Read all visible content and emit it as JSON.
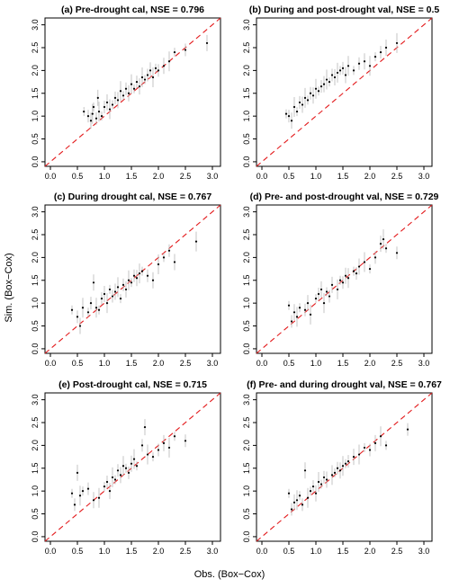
{
  "figure": {
    "xlabel": "Obs. (Box−Cox)",
    "ylabel": "Sim. (Box−Cox)"
  },
  "chart_data": [
    {
      "type": "scatter",
      "title": "(a) Pre-drought cal, NSE = 0.796",
      "xlim": [
        -0.1,
        3.15
      ],
      "ylim": [
        -0.1,
        3.15
      ],
      "xticks": [
        "0.0",
        "0.5",
        "1.0",
        "1.5",
        "2.0",
        "2.5",
        "3.0"
      ],
      "yticks": [
        "0.0",
        "0.5",
        "1.0",
        "1.5",
        "2.0",
        "2.5",
        "3.0"
      ],
      "reference_line": "1:1",
      "x": [
        0.62,
        0.7,
        0.75,
        0.78,
        0.8,
        0.85,
        0.88,
        0.9,
        0.95,
        1.0,
        1.05,
        1.1,
        1.15,
        1.2,
        1.25,
        1.3,
        1.35,
        1.4,
        1.45,
        1.5,
        1.55,
        1.6,
        1.65,
        1.7,
        1.75,
        1.8,
        1.85,
        1.9,
        1.95,
        2.0,
        2.1,
        2.2,
        2.3,
        2.5,
        2.9
      ],
      "y": [
        1.1,
        1.0,
        0.9,
        1.05,
        1.2,
        0.95,
        1.4,
        1.1,
        1.0,
        1.2,
        1.3,
        1.15,
        1.25,
        1.4,
        1.35,
        1.55,
        1.45,
        1.6,
        1.5,
        1.7,
        1.6,
        1.75,
        1.65,
        1.85,
        1.8,
        1.9,
        2.0,
        1.85,
        2.05,
        2.0,
        2.1,
        2.2,
        2.4,
        2.45,
        2.6
      ]
    },
    {
      "type": "scatter",
      "title": "(b) During and post-drought val, NSE = 0.5",
      "xlim": [
        -0.1,
        3.15
      ],
      "ylim": [
        -0.1,
        3.15
      ],
      "xticks": [
        "0.0",
        "0.5",
        "1.0",
        "1.5",
        "2.0",
        "2.5",
        "3.0"
      ],
      "yticks": [
        "0.0",
        "0.5",
        "1.0",
        "1.5",
        "2.0",
        "2.5",
        "3.0"
      ],
      "reference_line": "1:1",
      "x": [
        0.45,
        0.5,
        0.55,
        0.6,
        0.65,
        0.7,
        0.75,
        0.8,
        0.85,
        0.9,
        0.95,
        1.0,
        1.05,
        1.1,
        1.15,
        1.2,
        1.25,
        1.3,
        1.35,
        1.4,
        1.45,
        1.5,
        1.55,
        1.6,
        1.7,
        1.8,
        1.9,
        2.0,
        2.1,
        2.2,
        2.3,
        2.5
      ],
      "y": [
        1.05,
        1.0,
        0.9,
        1.2,
        1.1,
        1.3,
        1.25,
        1.4,
        1.35,
        1.5,
        1.45,
        1.6,
        1.55,
        1.65,
        1.7,
        1.8,
        1.75,
        1.9,
        1.85,
        1.95,
        2.0,
        2.05,
        1.9,
        2.1,
        2.0,
        2.15,
        2.2,
        2.1,
        2.3,
        2.4,
        2.5,
        2.6
      ]
    },
    {
      "type": "scatter",
      "title": "(c) During drought cal, NSE = 0.767",
      "xlim": [
        -0.1,
        3.15
      ],
      "ylim": [
        -0.1,
        3.15
      ],
      "xticks": [
        "0.0",
        "0.5",
        "1.0",
        "1.5",
        "2.0",
        "2.5",
        "3.0"
      ],
      "yticks": [
        "0.0",
        "0.5",
        "1.0",
        "1.5",
        "2.0",
        "2.5",
        "3.0"
      ],
      "reference_line": "1:1",
      "x": [
        0.4,
        0.5,
        0.55,
        0.6,
        0.7,
        0.75,
        0.8,
        0.85,
        0.9,
        0.95,
        1.0,
        1.05,
        1.1,
        1.15,
        1.2,
        1.25,
        1.3,
        1.35,
        1.4,
        1.45,
        1.5,
        1.55,
        1.6,
        1.65,
        1.7,
        1.8,
        1.9,
        2.0,
        2.1,
        2.2,
        2.3,
        2.7
      ],
      "y": [
        0.85,
        0.7,
        0.5,
        0.9,
        0.8,
        1.0,
        1.45,
        0.9,
        0.85,
        1.1,
        1.2,
        1.0,
        1.3,
        1.15,
        1.25,
        1.35,
        1.1,
        1.4,
        1.3,
        1.5,
        1.45,
        1.6,
        1.55,
        1.65,
        1.7,
        1.6,
        1.5,
        1.85,
        2.0,
        2.15,
        1.9,
        2.35
      ]
    },
    {
      "type": "scatter",
      "title": "(d) Pre- and post-drought val, NSE = 0.729",
      "xlim": [
        -0.1,
        3.15
      ],
      "ylim": [
        -0.1,
        3.15
      ],
      "xticks": [
        "0.0",
        "0.5",
        "1.0",
        "1.5",
        "2.0",
        "2.5",
        "3.0"
      ],
      "yticks": [
        "0.0",
        "0.5",
        "1.0",
        "1.5",
        "2.0",
        "2.5",
        "3.0"
      ],
      "reference_line": "1:1",
      "x": [
        0.5,
        0.55,
        0.6,
        0.65,
        0.7,
        0.8,
        0.85,
        0.9,
        1.0,
        1.05,
        1.1,
        1.15,
        1.2,
        1.25,
        1.3,
        1.4,
        1.45,
        1.5,
        1.55,
        1.6,
        1.7,
        1.75,
        1.8,
        1.9,
        2.0,
        2.1,
        2.2,
        2.25,
        2.3,
        2.5
      ],
      "y": [
        0.95,
        0.6,
        0.8,
        0.7,
        0.9,
        0.85,
        1.0,
        0.75,
        1.1,
        1.2,
        1.3,
        1.0,
        1.25,
        1.15,
        1.4,
        1.3,
        1.5,
        1.45,
        1.6,
        1.55,
        1.7,
        1.65,
        1.8,
        1.9,
        1.75,
        2.0,
        2.3,
        2.4,
        2.2,
        2.1
      ]
    },
    {
      "type": "scatter",
      "title": "(e) Post-drought cal, NSE = 0.715",
      "xlim": [
        -0.1,
        3.15
      ],
      "ylim": [
        -0.1,
        3.15
      ],
      "xticks": [
        "0.0",
        "0.5",
        "1.0",
        "1.5",
        "2.0",
        "2.5",
        "3.0"
      ],
      "yticks": [
        "0.0",
        "0.5",
        "1.0",
        "1.5",
        "2.0",
        "2.5",
        "3.0"
      ],
      "reference_line": "1:1",
      "x": [
        0.4,
        0.45,
        0.5,
        0.55,
        0.6,
        0.7,
        0.8,
        0.9,
        1.0,
        1.05,
        1.1,
        1.15,
        1.2,
        1.25,
        1.3,
        1.35,
        1.4,
        1.45,
        1.5,
        1.55,
        1.6,
        1.7,
        1.75,
        1.8,
        1.9,
        2.0,
        2.1,
        2.2,
        2.3,
        2.5
      ],
      "y": [
        0.95,
        0.7,
        1.4,
        0.9,
        1.0,
        1.05,
        0.8,
        0.85,
        1.1,
        1.2,
        1.0,
        1.3,
        1.25,
        1.45,
        1.35,
        1.55,
        1.5,
        1.4,
        1.6,
        1.7,
        1.55,
        2.0,
        2.4,
        1.8,
        1.75,
        1.9,
        2.05,
        1.95,
        2.2,
        2.1
      ]
    },
    {
      "type": "scatter",
      "title": "(f) Pre- and during drought val, NSE = 0.767",
      "xlim": [
        -0.1,
        3.15
      ],
      "ylim": [
        -0.1,
        3.15
      ],
      "xticks": [
        "0.0",
        "0.5",
        "1.0",
        "1.5",
        "2.0",
        "2.5",
        "3.0"
      ],
      "yticks": [
        "0.0",
        "0.5",
        "1.0",
        "1.5",
        "2.0",
        "2.5",
        "3.0"
      ],
      "reference_line": "1:1",
      "x": [
        0.5,
        0.55,
        0.6,
        0.65,
        0.7,
        0.75,
        0.8,
        0.85,
        0.9,
        0.95,
        1.0,
        1.05,
        1.1,
        1.15,
        1.2,
        1.3,
        1.35,
        1.4,
        1.45,
        1.5,
        1.55,
        1.6,
        1.7,
        1.8,
        1.9,
        2.0,
        2.1,
        2.2,
        2.3,
        2.7
      ],
      "y": [
        0.95,
        0.6,
        0.75,
        0.8,
        0.9,
        0.7,
        1.45,
        0.85,
        1.0,
        1.1,
        0.95,
        1.2,
        1.15,
        1.3,
        1.25,
        1.35,
        1.4,
        1.5,
        1.45,
        1.55,
        1.6,
        1.65,
        1.75,
        1.8,
        1.95,
        1.9,
        2.05,
        2.2,
        2.0,
        2.35
      ]
    }
  ]
}
